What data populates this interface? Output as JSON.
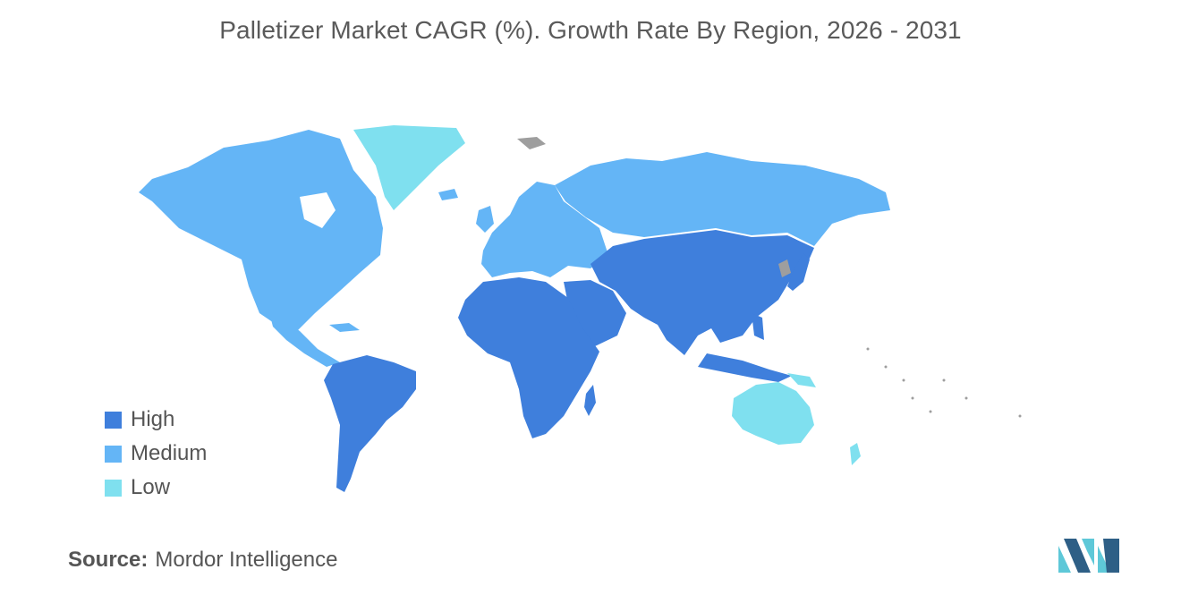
{
  "title": "Palletizer Market CAGR (%). Growth Rate By Region, 2026 - 2031",
  "legend": [
    {
      "label": "High",
      "color": "#3f7fdc"
    },
    {
      "label": "Medium",
      "color": "#64b5f6"
    },
    {
      "label": "Low",
      "color": "#7fe0ef"
    }
  ],
  "no_data_color": "#9e9e9e",
  "regions": [
    {
      "name": "North America",
      "level": "Medium"
    },
    {
      "name": "Europe",
      "level": "Medium"
    },
    {
      "name": "Russia & Central Asia north",
      "level": "Medium"
    },
    {
      "name": "South America",
      "level": "High"
    },
    {
      "name": "Africa",
      "level": "High"
    },
    {
      "name": "Middle East",
      "level": "High"
    },
    {
      "name": "Asia",
      "level": "High"
    },
    {
      "name": "Greenland",
      "level": "Low"
    },
    {
      "name": "Australia & New Zealand",
      "level": "Low"
    }
  ],
  "source": {
    "label": "Source:",
    "value": "Mordor Intelligence"
  },
  "logo": {
    "icon": "mordor-intelligence-logo-icon",
    "colors": [
      "#2e5f86",
      "#5ec8d8"
    ]
  }
}
